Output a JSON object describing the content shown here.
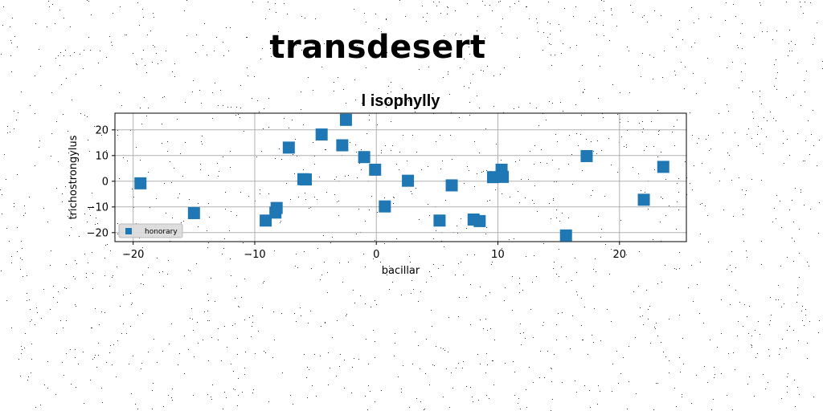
{
  "page": {
    "title": "transdesert"
  },
  "chart_data": {
    "type": "scatter",
    "title": "l isophylly",
    "xlabel": "bacillar",
    "ylabel": "trichostrongylus",
    "xlim": [
      -21.5,
      25.5
    ],
    "ylim": [
      -23.5,
      26.5
    ],
    "xticks": [
      -20,
      -10,
      0,
      10,
      20
    ],
    "yticks": [
      -20,
      -10,
      0,
      10,
      20
    ],
    "grid": true,
    "legend_position": "lower-left",
    "series": [
      {
        "name": "honorary",
        "color": "#1f77b4",
        "marker": "square",
        "points": [
          {
            "x": -19.4,
            "y": -0.8
          },
          {
            "x": -15.0,
            "y": -12.4
          },
          {
            "x": -9.1,
            "y": -15.3
          },
          {
            "x": -8.3,
            "y": -12.2
          },
          {
            "x": -8.2,
            "y": -10.4
          },
          {
            "x": -7.2,
            "y": 13.1
          },
          {
            "x": -6.0,
            "y": 0.8
          },
          {
            "x": -5.8,
            "y": 0.7
          },
          {
            "x": -4.5,
            "y": 18.2
          },
          {
            "x": -2.8,
            "y": 14.0
          },
          {
            "x": -2.5,
            "y": 23.9
          },
          {
            "x": -1.0,
            "y": 9.4
          },
          {
            "x": -0.1,
            "y": 4.5
          },
          {
            "x": 0.7,
            "y": -9.8
          },
          {
            "x": 2.6,
            "y": 0.2
          },
          {
            "x": 5.2,
            "y": -15.3
          },
          {
            "x": 6.2,
            "y": -1.6
          },
          {
            "x": 8.0,
            "y": -14.9
          },
          {
            "x": 8.5,
            "y": -15.5
          },
          {
            "x": 9.6,
            "y": 1.6
          },
          {
            "x": 10.3,
            "y": 4.5
          },
          {
            "x": 10.4,
            "y": 1.7
          },
          {
            "x": 15.6,
            "y": -21.1
          },
          {
            "x": 17.3,
            "y": 9.8
          },
          {
            "x": 22.0,
            "y": -7.2
          },
          {
            "x": 23.6,
            "y": 5.6
          }
        ]
      }
    ]
  }
}
